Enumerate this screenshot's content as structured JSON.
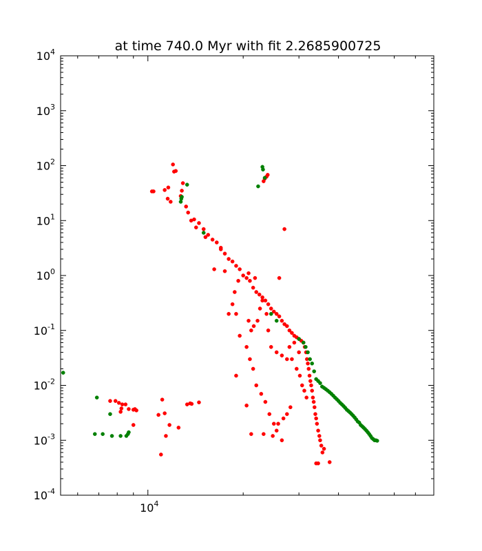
{
  "chart_data": {
    "type": "scatter",
    "title": "at time 740.0 Myr with fit 2.2685900725",
    "xscale": "log",
    "yscale": "log",
    "xlim": [
      5300,
      80000
    ],
    "ylim": [
      0.0001,
      10000
    ],
    "xticks": [
      {
        "value": 10000,
        "base": "10",
        "exp": "4"
      }
    ],
    "yticks": [
      {
        "value": 10000,
        "base": "10",
        "exp": "4"
      },
      {
        "value": 1000,
        "base": "10",
        "exp": "3"
      },
      {
        "value": 100,
        "base": "10",
        "exp": "2"
      },
      {
        "value": 10,
        "base": "10",
        "exp": "1"
      },
      {
        "value": 1,
        "base": "10",
        "exp": "0"
      },
      {
        "value": 0.1,
        "base": "10",
        "exp": "-1"
      },
      {
        "value": 0.01,
        "base": "10",
        "exp": "-2"
      },
      {
        "value": 0.001,
        "base": "10",
        "exp": "-3"
      },
      {
        "value": 0.0001,
        "base": "10",
        "exp": "-4"
      }
    ],
    "grid": false,
    "legend": "none",
    "series": [
      {
        "color": "#ff0000",
        "description": "red markers",
        "points": [
          [
            10300,
            34
          ],
          [
            10420,
            34
          ],
          [
            11300,
            36
          ],
          [
            11600,
            40
          ],
          [
            11550,
            25
          ],
          [
            11800,
            22
          ],
          [
            12100,
            78
          ],
          [
            12250,
            80
          ],
          [
            12000,
            105
          ],
          [
            12800,
            35
          ],
          [
            12700,
            28
          ],
          [
            12900,
            48
          ],
          [
            13200,
            18
          ],
          [
            13400,
            14
          ],
          [
            13700,
            10
          ],
          [
            14000,
            10.5
          ],
          [
            14500,
            9
          ],
          [
            14200,
            7.5
          ],
          [
            15000,
            7
          ],
          [
            15500,
            5.5
          ],
          [
            15200,
            5
          ],
          [
            16000,
            4.5
          ],
          [
            16500,
            4
          ],
          [
            17000,
            3.2
          ],
          [
            17500,
            2.5
          ],
          [
            18000,
            2
          ],
          [
            18500,
            1.8
          ],
          [
            19000,
            1.5
          ],
          [
            19500,
            1.3
          ],
          [
            20000,
            1
          ],
          [
            20500,
            0.9
          ],
          [
            21000,
            0.8
          ],
          [
            21500,
            0.6
          ],
          [
            22000,
            0.5
          ],
          [
            22500,
            0.45
          ],
          [
            23000,
            0.4
          ],
          [
            23500,
            0.35
          ],
          [
            24000,
            0.3
          ],
          [
            24500,
            0.25
          ],
          [
            25000,
            0.22
          ],
          [
            25500,
            0.2
          ],
          [
            26000,
            0.18
          ],
          [
            26500,
            0.15
          ],
          [
            27000,
            0.13
          ],
          [
            27500,
            0.12
          ],
          [
            28000,
            0.1
          ],
          [
            28500,
            0.09
          ],
          [
            29000,
            0.08
          ],
          [
            29500,
            0.075
          ],
          [
            30000,
            0.07
          ],
          [
            30500,
            0.065
          ],
          [
            31000,
            0.06
          ],
          [
            31300,
            0.05
          ],
          [
            31600,
            0.04
          ],
          [
            31800,
            0.03
          ],
          [
            32000,
            0.025
          ],
          [
            32200,
            0.02
          ],
          [
            32400,
            0.015
          ],
          [
            32600,
            0.012
          ],
          [
            32800,
            0.01
          ],
          [
            33000,
            0.008
          ],
          [
            33200,
            0.006
          ],
          [
            33400,
            0.005
          ],
          [
            33600,
            0.004
          ],
          [
            33800,
            0.003
          ],
          [
            34000,
            0.0025
          ],
          [
            34200,
            0.002
          ],
          [
            34500,
            0.0015
          ],
          [
            34800,
            0.0012
          ],
          [
            35000,
            0.001
          ],
          [
            35300,
            0.0008
          ],
          [
            35600,
            0.0006
          ],
          [
            34000,
            0.00038
          ],
          [
            34500,
            0.00038
          ],
          [
            37500,
            0.0004
          ],
          [
            36000,
            0.0007
          ],
          [
            17000,
            3
          ],
          [
            16200,
            1.3
          ],
          [
            17500,
            1.2
          ],
          [
            18500,
            0.3
          ],
          [
            19000,
            0.2
          ],
          [
            19500,
            0.08
          ],
          [
            20500,
            0.05
          ],
          [
            21000,
            0.03
          ],
          [
            21500,
            0.02
          ],
          [
            22000,
            0.01
          ],
          [
            22800,
            0.007
          ],
          [
            23500,
            0.005
          ],
          [
            24200,
            0.003
          ],
          [
            25000,
            0.002
          ],
          [
            25500,
            0.0015
          ],
          [
            26500,
            0.001
          ],
          [
            20500,
            0.0043
          ],
          [
            19000,
            0.015
          ],
          [
            18000,
            0.2
          ],
          [
            18800,
            0.5
          ],
          [
            19300,
            0.8
          ],
          [
            20800,
            1.1
          ],
          [
            21800,
            0.9
          ],
          [
            23000,
            0.35
          ],
          [
            26000,
            0.9
          ],
          [
            27000,
            7
          ],
          [
            28500,
            0.03
          ],
          [
            29500,
            0.02
          ],
          [
            30200,
            0.015
          ],
          [
            30700,
            0.01
          ],
          [
            31200,
            0.008
          ],
          [
            31700,
            0.006
          ],
          [
            28200,
            0.004
          ],
          [
            27500,
            0.003
          ],
          [
            26800,
            0.0025
          ],
          [
            25800,
            0.002
          ],
          [
            24800,
            0.0012
          ],
          [
            23200,
            0.0013
          ],
          [
            21200,
            0.0013
          ],
          [
            24000,
            0.1
          ],
          [
            23700,
            0.2
          ],
          [
            22600,
            0.25
          ],
          [
            22200,
            0.15
          ],
          [
            21600,
            0.12
          ],
          [
            21200,
            0.1
          ],
          [
            20800,
            0.15
          ],
          [
            24500,
            0.05
          ],
          [
            25500,
            0.04
          ],
          [
            26500,
            0.035
          ],
          [
            27500,
            0.03
          ],
          [
            28000,
            0.05
          ],
          [
            29000,
            0.06
          ],
          [
            30000,
            0.04
          ],
          [
            23700,
            63
          ],
          [
            23400,
            58
          ],
          [
            23900,
            68
          ],
          [
            23200,
            52
          ],
          [
            7600,
            0.0052
          ],
          [
            7900,
            0.0052
          ],
          [
            8100,
            0.0048
          ],
          [
            8300,
            0.0045
          ],
          [
            8500,
            0.0045
          ],
          [
            8250,
            0.0038
          ],
          [
            8700,
            0.0037
          ],
          [
            9000,
            0.0036
          ],
          [
            9200,
            0.0035
          ],
          [
            9100,
            0.0037
          ],
          [
            8200,
            0.0033
          ],
          [
            9000,
            0.0019
          ],
          [
            11100,
            0.0055
          ],
          [
            10800,
            0.0029
          ],
          [
            11300,
            0.0031
          ],
          [
            11700,
            0.0019
          ],
          [
            11400,
            0.0012
          ],
          [
            12500,
            0.0017
          ],
          [
            13300,
            0.0045
          ],
          [
            13600,
            0.0047
          ],
          [
            13750,
            0.0046
          ],
          [
            14500,
            0.0049
          ],
          [
            11000,
            0.00055
          ]
        ]
      },
      {
        "color": "#008000",
        "description": "green markers",
        "points": [
          [
            5400,
            0.017
          ],
          [
            6900,
            0.006
          ],
          [
            6800,
            0.0013
          ],
          [
            7200,
            0.0013
          ],
          [
            7600,
            0.003
          ],
          [
            7700,
            0.0012
          ],
          [
            8200,
            0.0012
          ],
          [
            8550,
            0.0012
          ],
          [
            8650,
            0.0013
          ],
          [
            8700,
            0.0014
          ],
          [
            12700,
            22
          ],
          [
            12750,
            25
          ],
          [
            12800,
            27
          ],
          [
            13300,
            45
          ],
          [
            15000,
            6
          ],
          [
            23000,
            95
          ],
          [
            23100,
            85
          ],
          [
            22300,
            42
          ],
          [
            23400,
            60
          ],
          [
            24500,
            0.2
          ],
          [
            25500,
            0.15
          ],
          [
            30000,
            0.07
          ],
          [
            31000,
            0.06
          ],
          [
            31500,
            0.05
          ],
          [
            32000,
            0.04
          ],
          [
            32500,
            0.03
          ],
          [
            33000,
            0.025
          ],
          [
            33500,
            0.018
          ],
          [
            34000,
            0.013
          ],
          [
            34500,
            0.012
          ],
          [
            35000,
            0.011
          ],
          [
            35500,
            0.0095
          ],
          [
            36000,
            0.009
          ],
          [
            36500,
            0.0085
          ],
          [
            37000,
            0.008
          ],
          [
            37500,
            0.0075
          ],
          [
            38000,
            0.007
          ],
          [
            38500,
            0.0065
          ],
          [
            39000,
            0.006
          ],
          [
            39500,
            0.0056
          ],
          [
            40000,
            0.0052
          ],
          [
            40500,
            0.0048
          ],
          [
            41000,
            0.0045
          ],
          [
            41500,
            0.0042
          ],
          [
            42000,
            0.0039
          ],
          [
            42500,
            0.0036
          ],
          [
            43000,
            0.0034
          ],
          [
            43500,
            0.0032
          ],
          [
            44000,
            0.003
          ],
          [
            44500,
            0.0028
          ],
          [
            45000,
            0.0026
          ],
          [
            45500,
            0.0024
          ],
          [
            46000,
            0.0022
          ],
          [
            46500,
            0.0021
          ],
          [
            47000,
            0.0019
          ],
          [
            47500,
            0.0018
          ],
          [
            48000,
            0.0017
          ],
          [
            48500,
            0.0016
          ],
          [
            49000,
            0.0015
          ],
          [
            49500,
            0.0014
          ],
          [
            50000,
            0.0013
          ],
          [
            50500,
            0.0012
          ],
          [
            51000,
            0.0011
          ],
          [
            51500,
            0.00105
          ],
          [
            52000,
            0.001
          ],
          [
            52500,
            0.001
          ],
          [
            53000,
            0.00098
          ]
        ]
      }
    ]
  }
}
